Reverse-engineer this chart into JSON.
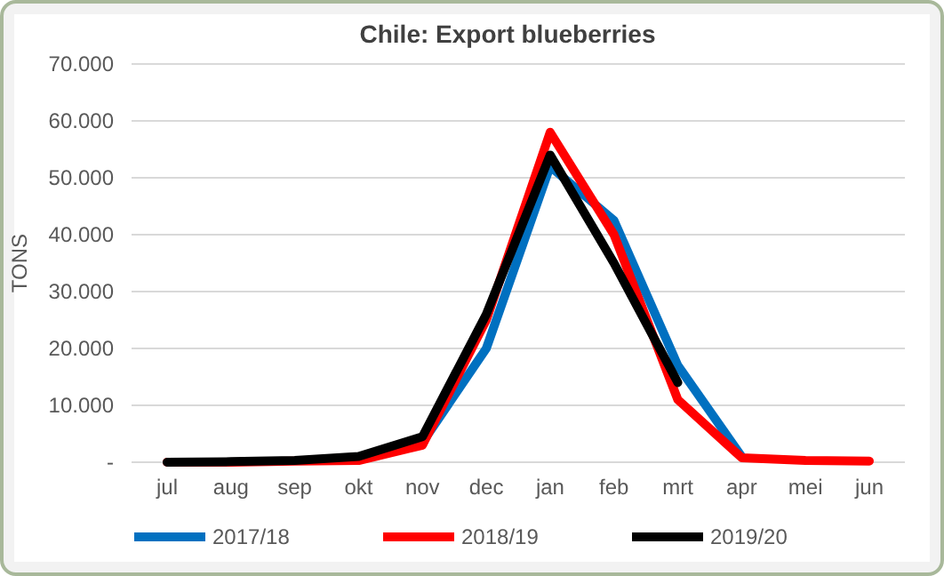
{
  "chart_data": {
    "type": "line",
    "title": "Chile: Export blueberries",
    "ylabel": "TONS",
    "categories": [
      "jul",
      "aug",
      "sep",
      "okt",
      "nov",
      "dec",
      "jan",
      "feb",
      "mrt",
      "apr",
      "mei",
      "jun"
    ],
    "series": [
      {
        "name": "2017/18",
        "color": "#0070c0",
        "values": [
          null,
          null,
          null,
          500,
          3500,
          20000,
          52000,
          42500,
          17000,
          1000,
          null,
          null
        ]
      },
      {
        "name": "2018/19",
        "color": "#ff0000",
        "values": [
          0,
          0,
          200,
          300,
          3000,
          25000,
          58000,
          40000,
          11000,
          800,
          300,
          200
        ]
      },
      {
        "name": "2019/20",
        "color": "#000000",
        "values": [
          0,
          100,
          300,
          1000,
          4500,
          26000,
          54000,
          35000,
          14000,
          null,
          null,
          null
        ]
      }
    ],
    "ylim": [
      0,
      70000
    ],
    "yticks": [
      {
        "value": 0,
        "label": "-"
      },
      {
        "value": 10000,
        "label": "10.000"
      },
      {
        "value": 20000,
        "label": "20.000"
      },
      {
        "value": 30000,
        "label": "30.000"
      },
      {
        "value": 40000,
        "label": "40.000"
      },
      {
        "value": 50000,
        "label": "50.000"
      },
      {
        "value": 60000,
        "label": "60.000"
      },
      {
        "value": 70000,
        "label": "70.000"
      }
    ],
    "grid": "y",
    "legend": "bottom",
    "marker": "none",
    "line_style": "solid"
  }
}
